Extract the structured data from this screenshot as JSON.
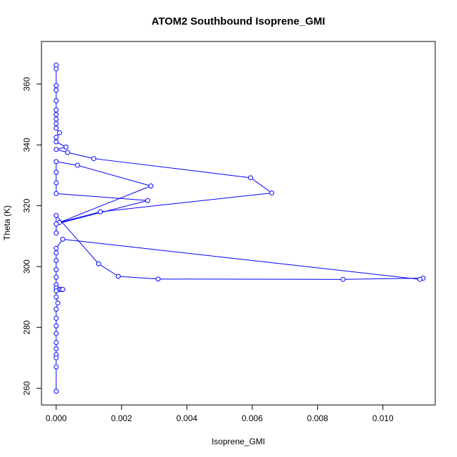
{
  "chart_data": {
    "type": "line",
    "title": "ATOM2 Southbound Isoprene_GMI",
    "xlabel": "Isoprene_GMI",
    "ylabel": "Theta (K)",
    "xlim": [
      -0.00045,
      0.0116
    ],
    "ylim": [
      254.5,
      374
    ],
    "x_ticks": [
      0.0,
      0.002,
      0.004,
      0.006,
      0.008,
      0.01
    ],
    "x_tick_labels": [
      "0.000",
      "0.002",
      "0.004",
      "0.006",
      "0.008",
      "0.010"
    ],
    "y_ticks": [
      260,
      280,
      300,
      320,
      340,
      360
    ],
    "y_tick_labels": [
      "260",
      "280",
      "300",
      "320",
      "340",
      "360"
    ],
    "grid": false,
    "legend": "none",
    "series": [
      {
        "color": "#0000ff",
        "marker": "open-circle",
        "points": [
          [
            0.0,
            366.2
          ],
          [
            0.0,
            365.0
          ],
          [
            0.0,
            359.5
          ],
          [
            0.0,
            358.0
          ],
          [
            0.0,
            354.5
          ],
          [
            0.0,
            351.5
          ],
          [
            0.0,
            350.0
          ],
          [
            0.0,
            348.5
          ],
          [
            0.0,
            347.0
          ],
          [
            0.0,
            345.5
          ],
          [
            0.0001,
            344.0
          ],
          [
            0.0,
            342.5
          ],
          [
            0.0,
            341.0
          ],
          [
            0.0003,
            339.3
          ],
          [
            0.0,
            338.5
          ],
          [
            0.00035,
            337.5
          ],
          [
            0.00115,
            335.5
          ],
          [
            0.00595,
            329.2
          ],
          [
            0.0066,
            324.2
          ],
          [
            0.00135,
            318.0
          ],
          [
            0.0001,
            314.5
          ],
          [
            0.0029,
            326.5
          ],
          [
            0.00065,
            333.3
          ],
          [
            0.0,
            334.5
          ],
          [
            0.0,
            331.0
          ],
          [
            0.0,
            327.5
          ],
          [
            0.0,
            324.0
          ],
          [
            0.0028,
            321.7
          ],
          [
            0.0,
            314.0
          ],
          [
            0.0,
            311.0
          ],
          [
            0.0,
            316.8
          ],
          [
            0.0013,
            300.9
          ],
          [
            0.0019,
            296.8
          ],
          [
            0.00312,
            295.9
          ],
          [
            0.00878,
            295.8
          ],
          [
            0.01123,
            296.2
          ],
          [
            0.01113,
            295.8
          ],
          [
            0.0002,
            309.0
          ],
          [
            0.0,
            306.0
          ],
          [
            0.0,
            304.5
          ],
          [
            0.0,
            302.0
          ],
          [
            0.0,
            299.0
          ],
          [
            0.0,
            296.5
          ],
          [
            0.0,
            294.0
          ],
          [
            0.0,
            293.0
          ],
          [
            0.0001,
            292.5
          ],
          [
            0.00015,
            292.5
          ],
          [
            0.0002,
            292.5
          ],
          [
            0.0,
            292.0
          ],
          [
            0.0,
            290.0
          ],
          [
            5e-05,
            288.0
          ],
          [
            0.0,
            286.0
          ],
          [
            0.0,
            283.0
          ],
          [
            0.0,
            280.5
          ],
          [
            0.0,
            278.0
          ],
          [
            0.0,
            275.0
          ],
          [
            0.0,
            273.0
          ],
          [
            0.0,
            271.0
          ],
          [
            0.0,
            270.0
          ],
          [
            0.0,
            267.0
          ],
          [
            0.0,
            259.0
          ]
        ]
      }
    ]
  }
}
